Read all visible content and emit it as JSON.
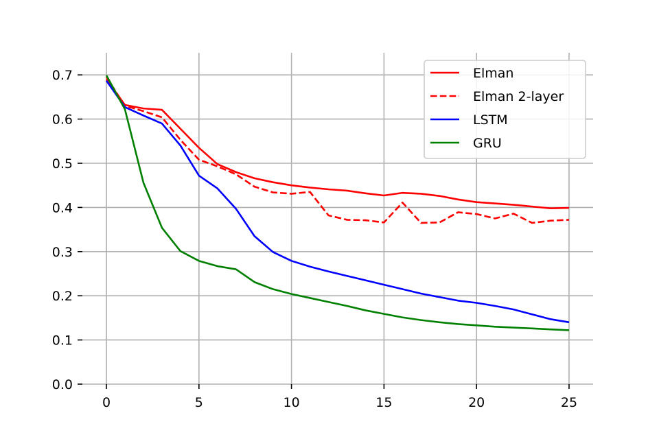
{
  "chart_data": {
    "type": "line",
    "title": "",
    "xlabel": "",
    "ylabel": "",
    "xlim": [
      -1.3,
      26.3
    ],
    "ylim": [
      0.0,
      0.75
    ],
    "xticks": [
      0,
      5,
      10,
      15,
      20,
      25
    ],
    "yticks": [
      0.0,
      0.1,
      0.2,
      0.3,
      0.4,
      0.5,
      0.6,
      0.7
    ],
    "xtick_labels": [
      "0",
      "5",
      "10",
      "15",
      "20",
      "25"
    ],
    "ytick_labels": [
      "0.0",
      "0.1",
      "0.2",
      "0.3",
      "0.4",
      "0.5",
      "0.6",
      "0.7"
    ],
    "grid": true,
    "legend_position": "top-right",
    "x": [
      0,
      1,
      2,
      3,
      4,
      5,
      6,
      7,
      8,
      9,
      10,
      11,
      12,
      13,
      14,
      15,
      16,
      17,
      18,
      19,
      20,
      21,
      22,
      23,
      24,
      25
    ],
    "series": [
      {
        "name": "Elman",
        "color": "#ff0000",
        "linestyle": "solid",
        "values": [
          0.69,
          0.632,
          0.624,
          0.621,
          0.578,
          0.535,
          0.498,
          0.48,
          0.466,
          0.457,
          0.45,
          0.445,
          0.441,
          0.438,
          0.432,
          0.427,
          0.433,
          0.431,
          0.426,
          0.418,
          0.412,
          0.409,
          0.406,
          0.402,
          0.398,
          0.399
        ]
      },
      {
        "name": "Elman 2-layer",
        "color": "#ff0000",
        "linestyle": "dashed",
        "values": [
          0.695,
          0.63,
          0.618,
          0.604,
          0.553,
          0.508,
          0.493,
          0.475,
          0.447,
          0.434,
          0.431,
          0.435,
          0.382,
          0.372,
          0.371,
          0.366,
          0.411,
          0.365,
          0.366,
          0.389,
          0.385,
          0.375,
          0.386,
          0.365,
          0.37,
          0.372
        ]
      },
      {
        "name": "LSTM",
        "color": "#0000ff",
        "linestyle": "solid",
        "values": [
          0.687,
          0.627,
          0.608,
          0.59,
          0.54,
          0.472,
          0.443,
          0.397,
          0.335,
          0.299,
          0.279,
          0.266,
          0.255,
          0.245,
          0.235,
          0.225,
          0.215,
          0.205,
          0.197,
          0.189,
          0.184,
          0.177,
          0.169,
          0.158,
          0.147,
          0.14
        ]
      },
      {
        "name": "GRU",
        "color": "#008000",
        "linestyle": "solid",
        "values": [
          0.699,
          0.622,
          0.456,
          0.354,
          0.301,
          0.279,
          0.267,
          0.26,
          0.231,
          0.215,
          0.204,
          0.195,
          0.186,
          0.177,
          0.167,
          0.159,
          0.151,
          0.145,
          0.14,
          0.136,
          0.133,
          0.13,
          0.128,
          0.126,
          0.124,
          0.122
        ]
      }
    ]
  }
}
